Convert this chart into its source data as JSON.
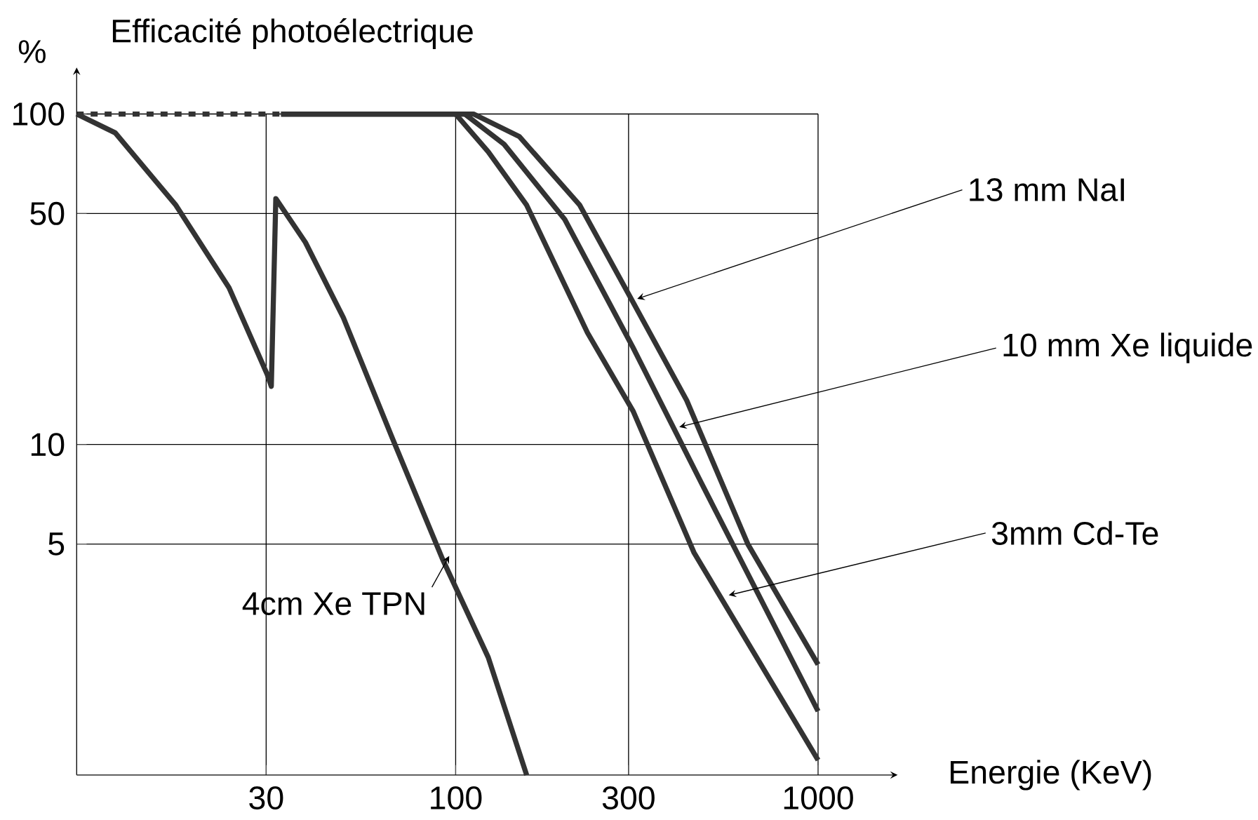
{
  "chart_data": {
    "type": "line",
    "title": "Efficacité photoélectrique",
    "ylabel": "%",
    "xlabel": "Energie (KeV)",
    "log": "xy",
    "grid": true,
    "xlim": [
      9,
      1000
    ],
    "ylim": [
      1,
      100
    ],
    "xticks": [
      30,
      100,
      300,
      1000
    ],
    "yticks": [
      5,
      10,
      50,
      100
    ],
    "series": [
      {
        "name": "4cm Xe TPN",
        "color": "#333333",
        "x": [
          9,
          11.5,
          16.9,
          23.7,
          30.2,
          31,
          31.9,
          38.5,
          49,
          67,
          92,
          123,
          157
        ],
        "values": [
          100,
          87.7,
          53,
          29.8,
          16.3,
          15,
          55.5,
          40.9,
          24.2,
          10.4,
          4.5,
          2.27,
          1.0
        ]
      },
      {
        "color": "#333333",
        "line_style": "dashed",
        "x": [
          9,
          33
        ],
        "values": [
          100,
          100
        ]
      },
      {
        "name": "13 mm NaI",
        "color": "#333333",
        "x": [
          33,
          112,
          150,
          220,
          309,
          434,
          640,
          1000
        ],
        "values": [
          100,
          100,
          85.4,
          53,
          26.9,
          13.6,
          5.0,
          2.16
        ]
      },
      {
        "name": "10 mm Xe liquide",
        "color": "#333333",
        "x": [
          33,
          106,
          136,
          200,
          309,
          478,
          1000
        ],
        "values": [
          100,
          100,
          81,
          48,
          19.6,
          7.6,
          1.56
        ]
      },
      {
        "name": "3mm Cd-Te",
        "color": "#333333",
        "x": [
          33,
          100,
          123,
          157,
          231,
          309,
          455,
          1000
        ],
        "values": [
          100,
          100,
          76.9,
          53,
          21.8,
          12.6,
          4.7,
          1.11
        ]
      }
    ]
  }
}
